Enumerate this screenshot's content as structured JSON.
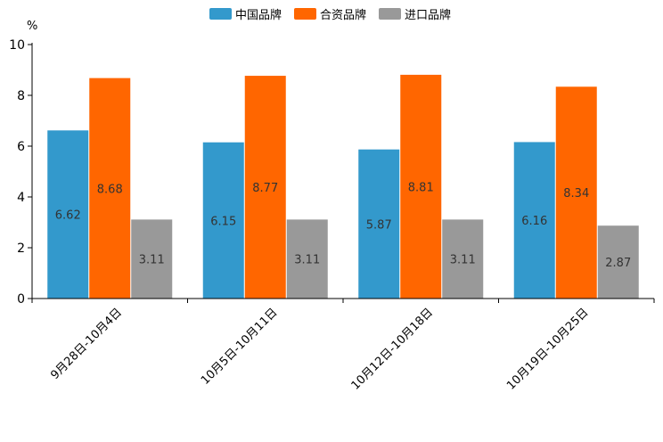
{
  "chart_data": {
    "type": "bar",
    "title": "",
    "xlabel": "",
    "ylabel": "%",
    "ylim": [
      0,
      10
    ],
    "yticks": [
      "0",
      "2",
      "4",
      "6",
      "8",
      "10"
    ],
    "grid": false,
    "legend_position": "top-center",
    "categories": [
      "9月28日-10月4日",
      "10月5日-10月11日",
      "10月12日-10月18日",
      "10月19日-10月25日"
    ],
    "series": [
      {
        "name": "中国品牌",
        "color": "#3399cc",
        "values": [
          6.62,
          6.15,
          5.87,
          6.16
        ],
        "labels": [
          "6.62",
          "6.15",
          "5.87",
          "6.16"
        ]
      },
      {
        "name": "合资品牌",
        "color": "#ff6600",
        "values": [
          8.68,
          8.77,
          8.81,
          8.34
        ],
        "labels": [
          "8.68",
          "8.77",
          "8.81",
          "8.34"
        ]
      },
      {
        "name": "进口品牌",
        "color": "#999999",
        "values": [
          3.11,
          3.11,
          3.11,
          2.87
        ],
        "labels": [
          "3.11",
          "3.11",
          "3.11",
          "2.87"
        ]
      }
    ]
  }
}
